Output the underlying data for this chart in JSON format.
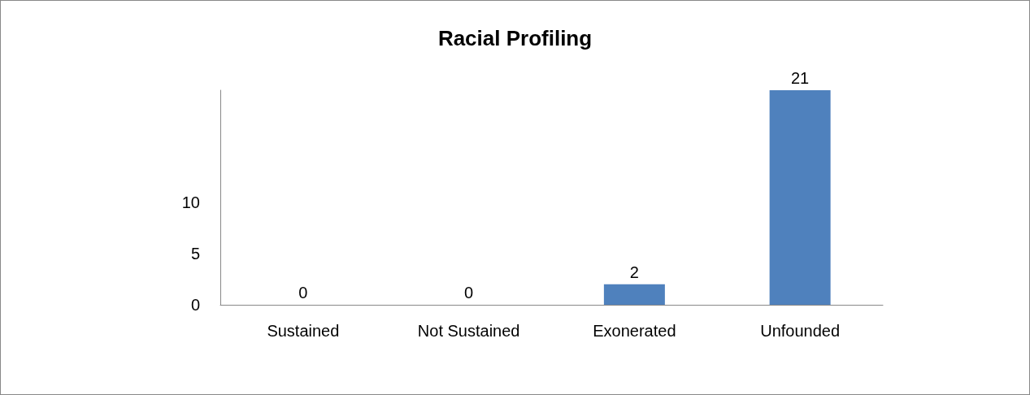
{
  "chart_data": {
    "type": "bar",
    "title": "Racial Profiling",
    "categories": [
      "Sustained",
      "Not Sustained",
      "Exonerated",
      "Unfounded"
    ],
    "values": [
      0,
      0,
      2,
      21
    ],
    "color": "#4f81bd",
    "ylim": [
      0,
      21
    ],
    "yticks": [
      0,
      5,
      10
    ],
    "grid": false,
    "data_labels": true
  }
}
